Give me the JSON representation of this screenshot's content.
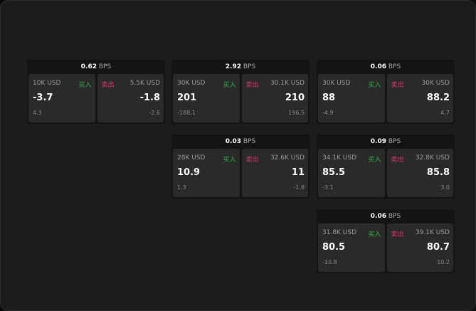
{
  "unit": "BPS",
  "widgets": [
    {
      "spread": "0.62",
      "buy_size": "10K USD",
      "buy_label": "买入",
      "sell_label": "卖出",
      "sell_size": "5.5K USD",
      "buy_price": "-3.7",
      "sell_price": "-1.8",
      "buy_sub": "4.3",
      "sell_sub": "-2.6"
    },
    {
      "spread": "2.92",
      "buy_size": "30K USD",
      "buy_label": "买入",
      "sell_label": "卖出",
      "sell_size": "30.1K USD",
      "buy_price": "201",
      "sell_price": "210",
      "buy_sub": "-188.1",
      "sell_sub": "196.5"
    },
    {
      "spread": "0.03",
      "buy_size": "28K USD",
      "buy_label": "买入",
      "sell_label": "卖出",
      "sell_size": "32.6K USD",
      "buy_price": "10.9",
      "sell_price": "11",
      "buy_sub": "1.3",
      "sell_sub": "-1.8"
    },
    {
      "spread": "0.06",
      "buy_size": "30K USD",
      "buy_label": "买入",
      "sell_label": "卖出",
      "sell_size": "30K USD",
      "buy_price": "88",
      "sell_price": "88.2",
      "buy_sub": "-4.9",
      "sell_sub": "4.7"
    },
    {
      "spread": "0.09",
      "buy_size": "34.1K USD",
      "buy_label": "买入",
      "sell_label": "卖出",
      "sell_size": "32.8K USD",
      "buy_price": "85.5",
      "sell_price": "85.8",
      "buy_sub": "-3.1",
      "sell_sub": "3.0"
    },
    {
      "spread": "0.06",
      "buy_size": "31.8K USD",
      "buy_label": "买入",
      "sell_label": "卖出",
      "sell_size": "39.1K USD",
      "buy_price": "80.5",
      "sell_price": "80.7",
      "buy_sub": "-10.8",
      "sell_sub": "10.2"
    }
  ],
  "colors": {
    "buy": "#2fb34a",
    "sell": "#e0336a"
  }
}
